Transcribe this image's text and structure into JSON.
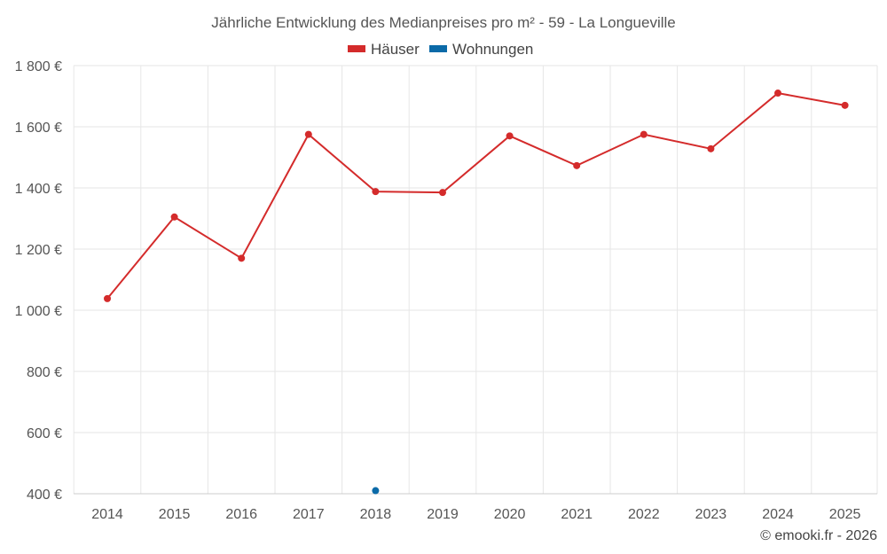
{
  "chart_data": {
    "type": "line",
    "title": "Jährliche Entwicklung des Medianpreises pro m² - 59 - La Longueville",
    "categories": [
      "2014",
      "2015",
      "2016",
      "2017",
      "2018",
      "2019",
      "2020",
      "2021",
      "2022",
      "2023",
      "2024",
      "2025"
    ],
    "series": [
      {
        "name": "Häuser",
        "color": "#d42b2b",
        "values": [
          1038,
          1305,
          1170,
          1575,
          1388,
          1385,
          1570,
          1473,
          1575,
          1528,
          1710,
          1670
        ]
      },
      {
        "name": "Wohnungen",
        "color": "#0b6aa8",
        "values": [
          null,
          null,
          null,
          null,
          410,
          null,
          null,
          null,
          null,
          null,
          null,
          null
        ]
      }
    ],
    "yticks": [
      400,
      600,
      800,
      1000,
      1200,
      1400,
      1600,
      1800
    ],
    "ytick_labels": [
      "400 €",
      "600 €",
      "800 €",
      "1 000 €",
      "1 200 €",
      "1 400 €",
      "1 600 €",
      "1 800 €"
    ],
    "ylim": [
      400,
      1800
    ],
    "xlabel": "",
    "ylabel": "",
    "grid": true,
    "legend_position": "top-center"
  },
  "credit": "© emooki.fr - 2026"
}
